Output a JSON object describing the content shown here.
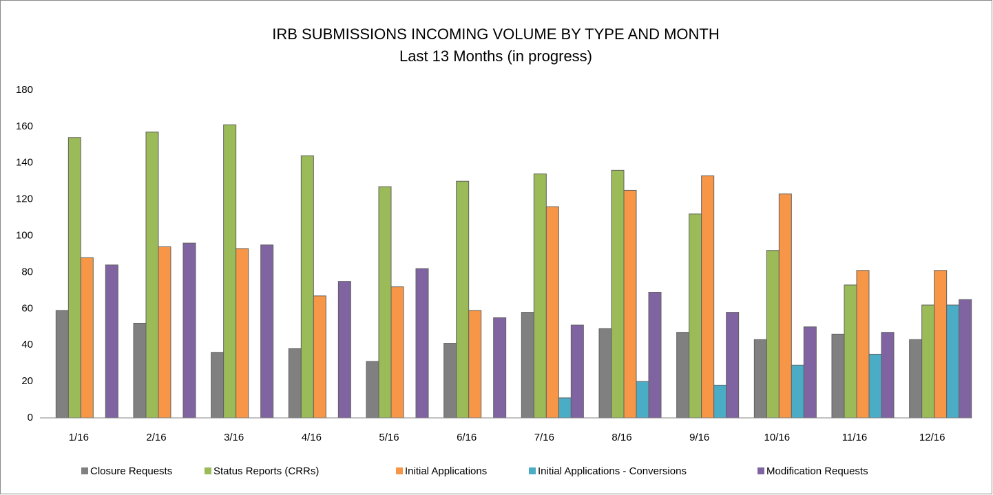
{
  "chart_data": {
    "type": "bar",
    "title": "IRB SUBMISSIONS INCOMING VOLUME BY TYPE AND MONTH",
    "subtitle": "Last 13 Months  (in progress)",
    "categories": [
      "1/16",
      "2/16",
      "3/16",
      "4/16",
      "5/16",
      "6/16",
      "7/16",
      "8/16",
      "9/16",
      "10/16",
      "11/16",
      "12/16"
    ],
    "series": [
      {
        "name": "Closure Requests",
        "color": "#808080",
        "values": [
          59,
          52,
          36,
          38,
          31,
          41,
          58,
          49,
          47,
          43,
          46,
          43
        ]
      },
      {
        "name": "Status Reports (CRRs)",
        "color": "#9bbb59",
        "values": [
          154,
          157,
          161,
          144,
          127,
          130,
          134,
          136,
          112,
          92,
          73,
          62
        ]
      },
      {
        "name": "Initial Applications",
        "color": "#f79646",
        "values": [
          88,
          94,
          93,
          67,
          72,
          59,
          116,
          125,
          133,
          123,
          81,
          81
        ]
      },
      {
        "name": "Initial Applications - Conversions",
        "color": "#4bacc6",
        "values": [
          null,
          null,
          null,
          null,
          null,
          null,
          11,
          20,
          18,
          29,
          35,
          62
        ]
      },
      {
        "name": "Modification Requests",
        "color": "#8064a2",
        "values": [
          84,
          96,
          95,
          75,
          82,
          55,
          51,
          69,
          58,
          50,
          47,
          65
        ]
      }
    ],
    "ylim": [
      0,
      180
    ],
    "yticks": [
      0,
      20,
      40,
      60,
      80,
      100,
      120,
      140,
      160,
      180
    ],
    "grid": false,
    "legend": "bottom"
  }
}
